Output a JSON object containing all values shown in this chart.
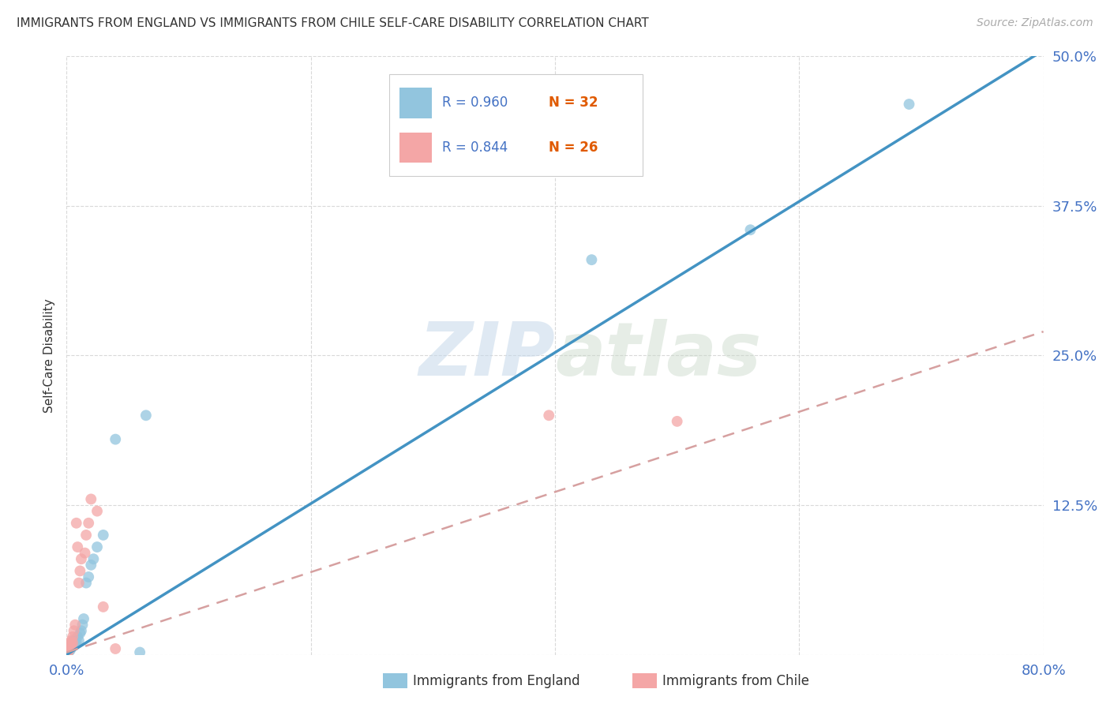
{
  "title": "IMMIGRANTS FROM ENGLAND VS IMMIGRANTS FROM CHILE SELF-CARE DISABILITY CORRELATION CHART",
  "source": "Source: ZipAtlas.com",
  "ylabel": "Self-Care Disability",
  "x_min": 0.0,
  "x_max": 0.8,
  "y_min": 0.0,
  "y_max": 0.5,
  "x_ticks": [
    0.0,
    0.2,
    0.4,
    0.6,
    0.8
  ],
  "y_ticks": [
    0.0,
    0.125,
    0.25,
    0.375,
    0.5
  ],
  "england_color": "#92c5de",
  "chile_color": "#f4a6a6",
  "england_line_color": "#4393c3",
  "chile_line_color": "#d6a0a0",
  "R_england": 0.96,
  "N_england": 32,
  "R_chile": 0.844,
  "N_chile": 26,
  "legend_england": "Immigrants from England",
  "legend_chile": "Immigrants from Chile",
  "watermark_1": "ZIP",
  "watermark_2": "atlas",
  "england_line_x0": 0.0,
  "england_line_y0": 0.0,
  "england_line_x1": 0.8,
  "england_line_y1": 0.505,
  "chile_line_x0": 0.0,
  "chile_line_y0": 0.002,
  "chile_line_x1": 0.8,
  "chile_line_y1": 0.27,
  "england_scatter_x": [
    0.001,
    0.002,
    0.002,
    0.003,
    0.003,
    0.004,
    0.004,
    0.005,
    0.005,
    0.006,
    0.006,
    0.007,
    0.007,
    0.008,
    0.009,
    0.01,
    0.011,
    0.012,
    0.013,
    0.014,
    0.016,
    0.018,
    0.02,
    0.022,
    0.025,
    0.03,
    0.04,
    0.06,
    0.065,
    0.43,
    0.56,
    0.69
  ],
  "england_scatter_y": [
    0.002,
    0.003,
    0.005,
    0.004,
    0.007,
    0.006,
    0.008,
    0.007,
    0.01,
    0.008,
    0.012,
    0.009,
    0.012,
    0.01,
    0.015,
    0.012,
    0.018,
    0.02,
    0.025,
    0.03,
    0.06,
    0.065,
    0.075,
    0.08,
    0.09,
    0.1,
    0.18,
    0.002,
    0.2,
    0.33,
    0.355,
    0.46
  ],
  "chile_scatter_x": [
    0.001,
    0.001,
    0.002,
    0.002,
    0.003,
    0.003,
    0.004,
    0.004,
    0.005,
    0.005,
    0.006,
    0.007,
    0.008,
    0.009,
    0.01,
    0.011,
    0.012,
    0.015,
    0.016,
    0.018,
    0.02,
    0.025,
    0.03,
    0.04,
    0.395,
    0.5
  ],
  "chile_scatter_y": [
    0.002,
    0.005,
    0.004,
    0.008,
    0.006,
    0.01,
    0.008,
    0.012,
    0.01,
    0.015,
    0.02,
    0.025,
    0.11,
    0.09,
    0.06,
    0.07,
    0.08,
    0.085,
    0.1,
    0.11,
    0.13,
    0.12,
    0.04,
    0.005,
    0.2,
    0.195
  ],
  "title_color": "#333333",
  "tick_color": "#4472c4",
  "grid_color": "#d9d9d9",
  "background_color": "#ffffff",
  "legend_R_color": "#4472c4",
  "legend_N_color": "#e05a00"
}
